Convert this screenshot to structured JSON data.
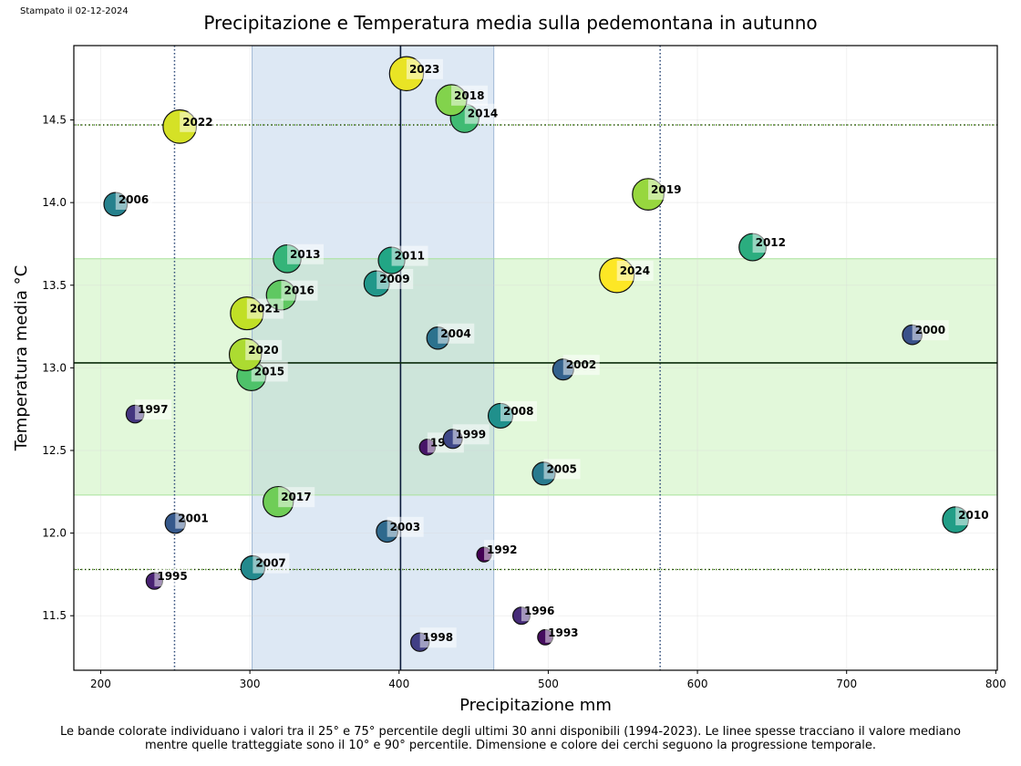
{
  "header": {
    "printed_note": "Stampato il 02-12-2024"
  },
  "caption": {
    "line1": "Le bande colorate individuano i valori tra il 25° e 75° percentile degli ultimi 30 anni disponibili (1994-2023). Le linee spesse tracciano il valore mediano",
    "line2": "mentre quelle tratteggiate sono il 10° e 90° percentile. Dimensione e colore dei cerchi seguono la progressione temporale."
  },
  "chart_data": {
    "type": "scatter",
    "title": "Precipitazione e Temperatura media sulla pedemontana in autunno",
    "xlabel": "Precipitazione mm",
    "ylabel": "Temperatura media °C",
    "xlim": [
      182,
      801
    ],
    "ylim": [
      11.17,
      14.95
    ],
    "xticks": [
      200,
      300,
      400,
      500,
      600,
      700,
      800
    ],
    "yticks": [
      11.5,
      12.0,
      12.5,
      13.0,
      13.5,
      14.0,
      14.5
    ],
    "xtick_labels": [
      "200",
      "300",
      "400",
      "500",
      "600",
      "700",
      "800"
    ],
    "ytick_labels": [
      "11.5",
      "12.0",
      "12.5",
      "13.0",
      "13.5",
      "14.0",
      "14.5"
    ],
    "grid": true,
    "colormap": "viridis",
    "size_and_color_by": "year",
    "reference": {
      "period": "1994-2023",
      "x_median": 401,
      "y_median": 13.03,
      "x_p25": 301.5,
      "x_p75": 463.5,
      "y_p25": 12.23,
      "y_p75": 13.66,
      "x_p10": 249.5,
      "x_p90": 575,
      "y_p10": 11.78,
      "y_p90": 14.47
    },
    "band_colors": {
      "x_band": "#dde8f4",
      "y_band": "#e2f8da",
      "overlap": "#cde5da",
      "x_dotted": "#2e4a78",
      "y_dotted": "#4a8a1a"
    },
    "points": [
      {
        "year": "1992",
        "x": 457,
        "y": 11.87
      },
      {
        "year": "1993",
        "x": 498,
        "y": 11.37
      },
      {
        "year": "1994",
        "x": 419,
        "y": 12.52
      },
      {
        "year": "1995",
        "x": 236,
        "y": 11.71
      },
      {
        "year": "1996",
        "x": 482,
        "y": 11.5
      },
      {
        "year": "1997",
        "x": 223,
        "y": 12.72
      },
      {
        "year": "1998",
        "x": 414,
        "y": 11.34
      },
      {
        "year": "1999",
        "x": 436,
        "y": 12.57
      },
      {
        "year": "2000",
        "x": 744,
        "y": 13.2
      },
      {
        "year": "2001",
        "x": 250,
        "y": 12.06
      },
      {
        "year": "2002",
        "x": 510,
        "y": 12.99
      },
      {
        "year": "2003",
        "x": 392,
        "y": 12.01
      },
      {
        "year": "2004",
        "x": 426,
        "y": 13.18
      },
      {
        "year": "2005",
        "x": 497,
        "y": 12.36
      },
      {
        "year": "2006",
        "x": 210,
        "y": 13.99
      },
      {
        "year": "2007",
        "x": 302,
        "y": 11.79
      },
      {
        "year": "2008",
        "x": 468,
        "y": 12.71
      },
      {
        "year": "2009",
        "x": 385,
        "y": 13.51
      },
      {
        "year": "2010",
        "x": 773,
        "y": 12.08
      },
      {
        "year": "2011",
        "x": 395,
        "y": 13.65
      },
      {
        "year": "2012",
        "x": 637,
        "y": 13.73
      },
      {
        "year": "2013",
        "x": 325,
        "y": 13.66
      },
      {
        "year": "2014",
        "x": 444,
        "y": 14.51
      },
      {
        "year": "2015",
        "x": 301,
        "y": 12.95
      },
      {
        "year": "2016",
        "x": 321,
        "y": 13.44
      },
      {
        "year": "2017",
        "x": 319,
        "y": 12.19
      },
      {
        "year": "2018",
        "x": 435,
        "y": 14.62
      },
      {
        "year": "2019",
        "x": 567,
        "y": 14.05
      },
      {
        "year": "2020",
        "x": 297,
        "y": 13.08
      },
      {
        "year": "2021",
        "x": 298,
        "y": 13.33
      },
      {
        "year": "2022",
        "x": 253,
        "y": 14.46
      },
      {
        "year": "2023",
        "x": 405,
        "y": 14.78
      },
      {
        "year": "2024",
        "x": 546,
        "y": 13.56
      }
    ]
  }
}
